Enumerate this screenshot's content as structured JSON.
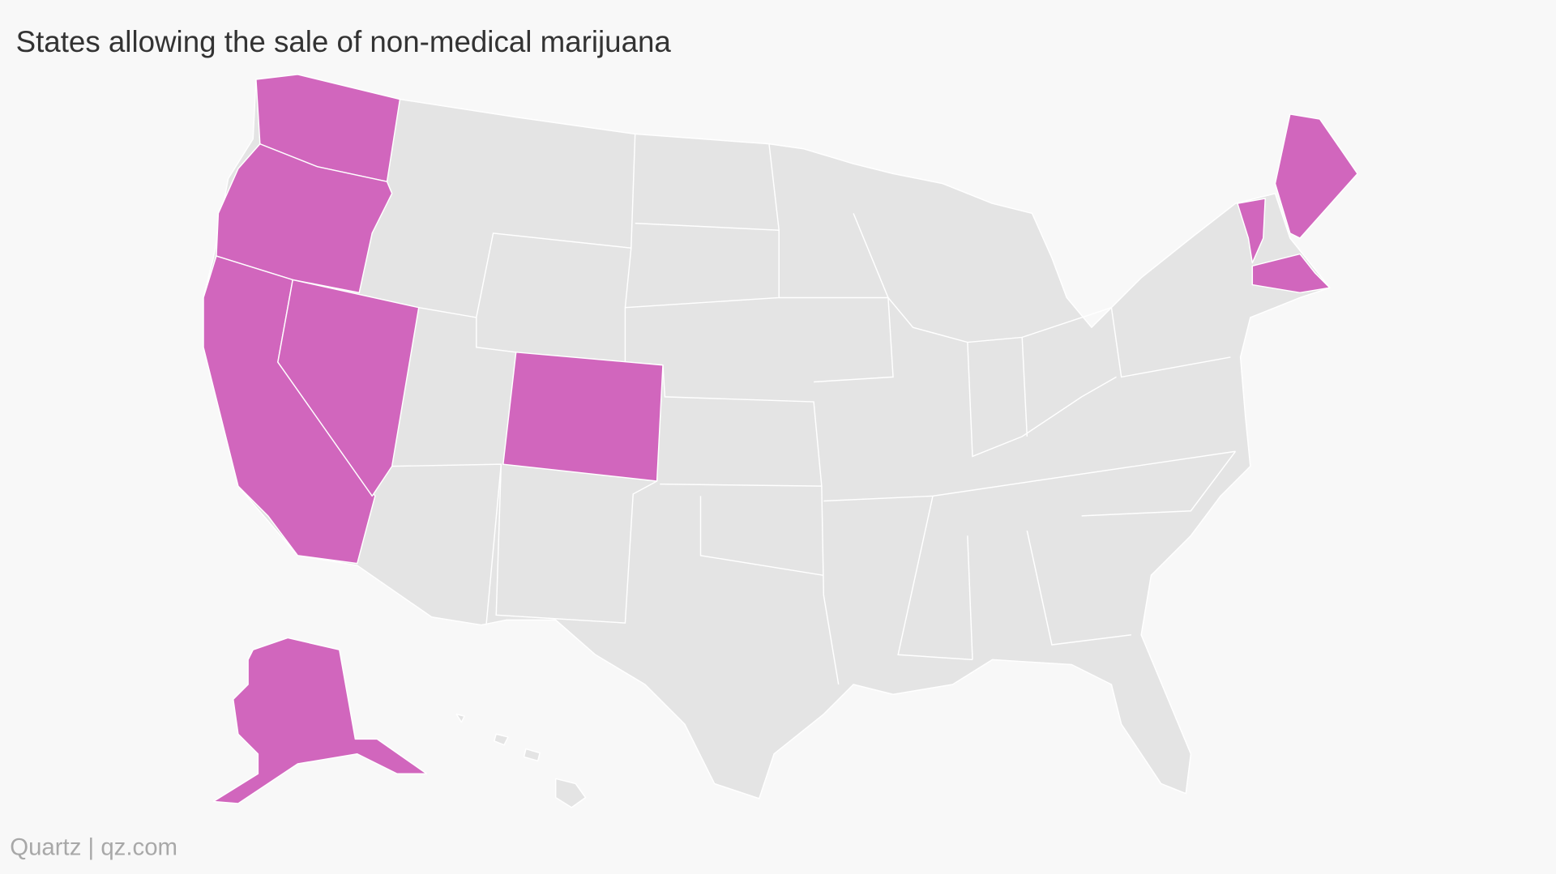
{
  "title": "States allowing the sale of non-medical marijuana",
  "source": "Quartz | qz.com",
  "map": {
    "highlight_color": "#d166bd",
    "base_color": "#e4e4e4"
  }
}
